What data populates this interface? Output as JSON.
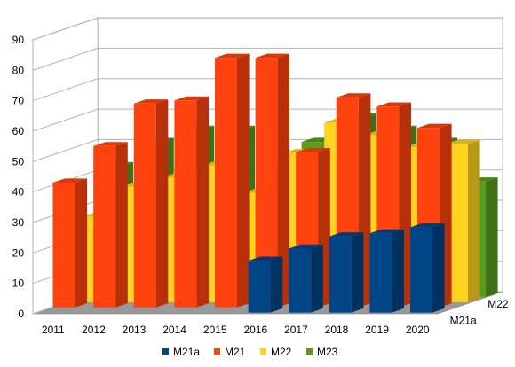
{
  "chart_data": {
    "type": "bar",
    "title": "",
    "xlabel": "",
    "ylabel": "",
    "ylim": [
      0,
      90
    ],
    "yticks": [
      "0",
      "10",
      "20",
      "30",
      "40",
      "50",
      "60",
      "70",
      "80",
      "90"
    ],
    "categories": [
      "2011",
      "2012",
      "2013",
      "2014",
      "2015",
      "2016",
      "2017",
      "2018",
      "2019",
      "2020"
    ],
    "depth_labels": [
      "M21a",
      "M22"
    ],
    "grid": true,
    "legend_position": "bottom",
    "series": [
      {
        "name": "M21a",
        "color": "#004586",
        "values": [
          0,
          0,
          0,
          0,
          0,
          17,
          21,
          25,
          26,
          28
        ]
      },
      {
        "name": "M21",
        "color": "#ff420e",
        "values": [
          41,
          53,
          67,
          68,
          82,
          82,
          51,
          69,
          66,
          59
        ]
      },
      {
        "name": "M22",
        "color": "#ffd320",
        "values": [
          28,
          38,
          41,
          45,
          36,
          49,
          59,
          55,
          51,
          52
        ]
      },
      {
        "name": "M23",
        "color": "#579d1c",
        "values": [
          43,
          51,
          55,
          55,
          43,
          51,
          59,
          55,
          51,
          38
        ]
      }
    ]
  }
}
